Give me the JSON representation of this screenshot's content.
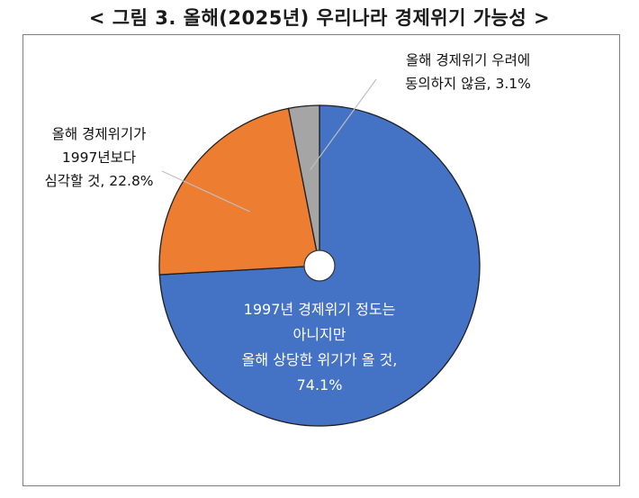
{
  "chart_data": {
    "type": "pie",
    "title": "< 그림 3. 올해(2025년) 우리나라 경제위기 가능성 >",
    "slices": [
      {
        "label_lines": [
          "1997년 경제위기 정도는",
          "아니지만",
          "올해 상당한 위기가 올 것,",
          "74.1%"
        ],
        "value": 74.1,
        "color": "#4472C4"
      },
      {
        "label_lines": [
          "올해 경제위기가",
          "1997년보다",
          "심각할 것, 22.8%"
        ],
        "value": 22.8,
        "color": "#ED7D31"
      },
      {
        "label_lines": [
          "올해 경제위기 우려에",
          "동의하지 않음, 3.1%"
        ],
        "value": 3.1,
        "color": "#A5A5A5"
      }
    ],
    "start_angle": "12 o'clock",
    "direction": "clockwise",
    "donut_hole": true
  }
}
